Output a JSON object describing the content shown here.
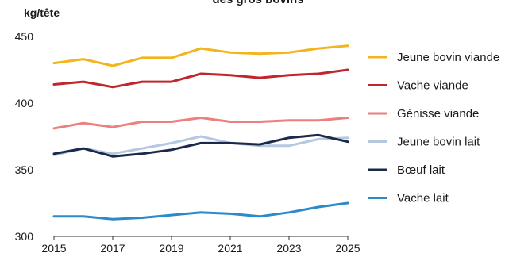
{
  "chart_data": {
    "type": "line",
    "title": "des gros bovins",
    "ylabel": "kg/tête",
    "xlabel": "",
    "xlim": [
      2015,
      2025
    ],
    "ylim": [
      300,
      450
    ],
    "x_ticks": [
      "2015",
      "2017",
      "2019",
      "2021",
      "2023",
      "2025"
    ],
    "y_ticks": [
      "300",
      "350",
      "400",
      "450"
    ],
    "grid": false,
    "legend_position": "right",
    "x": [
      2015,
      2016,
      2017,
      2018,
      2019,
      2020,
      2021,
      2022,
      2023,
      2024,
      2025
    ],
    "series": [
      {
        "name": "Jeune bovin viande",
        "color": "#F2B51E",
        "values": [
          430,
          433,
          428,
          434,
          434,
          441,
          438,
          437,
          438,
          441,
          443
        ]
      },
      {
        "name": "Vache viande",
        "color": "#C0272D",
        "values": [
          414,
          416,
          412,
          416,
          416,
          422,
          421,
          419,
          421,
          422,
          425
        ]
      },
      {
        "name": "Génisse viande",
        "color": "#EE7F7F",
        "values": [
          381,
          385,
          382,
          386,
          386,
          389,
          386,
          386,
          387,
          387,
          389
        ]
      },
      {
        "name": "Jeune bovin lait",
        "color": "#B5C8E0",
        "values": [
          361,
          366,
          362,
          366,
          370,
          375,
          370,
          368,
          368,
          373,
          374
        ]
      },
      {
        "name": "Bœuf lait",
        "color": "#1B2A4A",
        "values": [
          362,
          366,
          360,
          362,
          365,
          370,
          370,
          369,
          374,
          376,
          371
        ]
      },
      {
        "name": "Vache lait",
        "color": "#2B8BC8",
        "values": [
          315,
          315,
          313,
          314,
          316,
          318,
          317,
          315,
          318,
          322,
          325
        ]
      }
    ]
  }
}
